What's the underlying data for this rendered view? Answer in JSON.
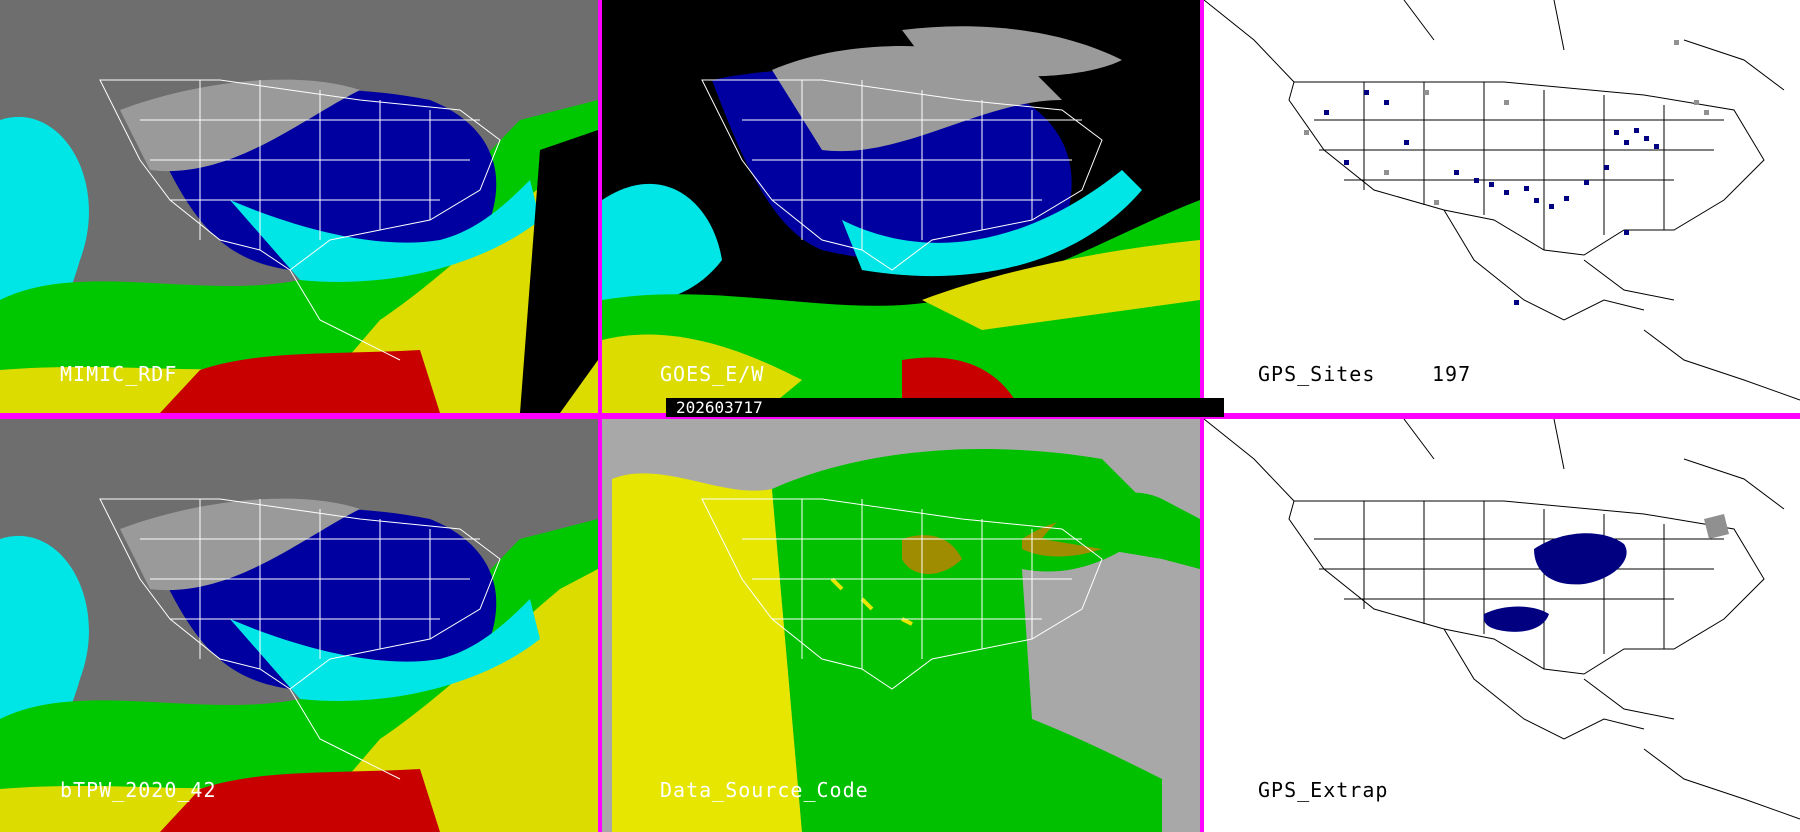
{
  "panels": [
    {
      "id": "mimic",
      "label": "MIMIC_RDF",
      "scheme": "tpw"
    },
    {
      "id": "goes",
      "label": "GOES_E/W",
      "scheme": "goes"
    },
    {
      "id": "gps",
      "label": "GPS_Sites",
      "count": "197",
      "scheme": "sites"
    },
    {
      "id": "btpw",
      "label": "bTPW_2020_42",
      "scheme": "tpw"
    },
    {
      "id": "dsc",
      "label": "Data_Source_Code",
      "scheme": "dsc"
    },
    {
      "id": "gpsx",
      "label": "GPS_Extrap",
      "scheme": "extrap"
    }
  ],
  "timestamp": "202603717",
  "colors": {
    "divider": "#ff00ff",
    "tpw_red": "#c80000",
    "tpw_yellow": "#dcdc00",
    "tpw_green": "#00c800",
    "tpw_cyan": "#00e6e6",
    "tpw_blue": "#0000a0",
    "tpw_gray": "#9a9a9a",
    "dsc_gray": "#a8a8a8",
    "dsc_yellow": "#e6e600",
    "dsc_green": "#00c000",
    "dsc_olive": "#a08c00",
    "site_blue": "#000080",
    "site_gray": "#909090"
  }
}
